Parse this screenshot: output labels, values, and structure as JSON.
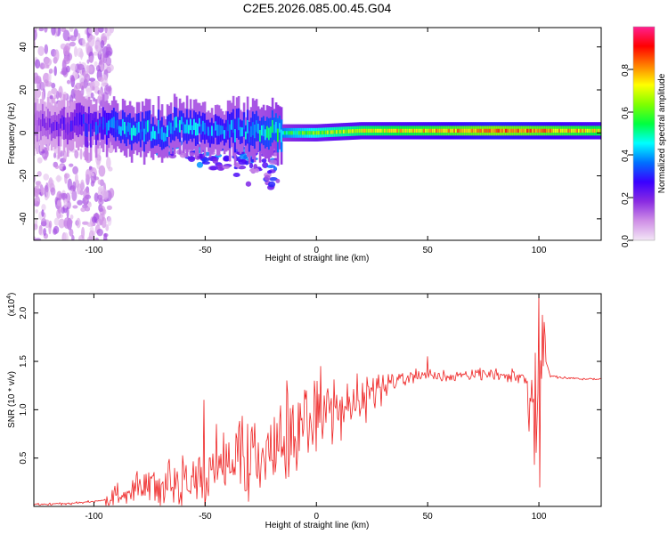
{
  "chart_data": [
    {
      "type": "heatmap",
      "title": "C2E5.2026.085.00.45.G04",
      "xlabel": "Height of straight line (km)",
      "ylabel": "Frequency (Hz)",
      "xlim": [
        -127,
        128
      ],
      "ylim": [
        -50,
        49
      ],
      "xticks": [
        -100,
        -50,
        0,
        50,
        100
      ],
      "yticks": [
        -40,
        -20,
        0,
        20,
        40
      ],
      "colorbar": {
        "label": "Normalized spectral amplitude",
        "range": [
          0,
          1
        ],
        "ticks": [
          "0.0",
          "0.2",
          "0.4",
          "0.6",
          "0.8"
        ],
        "colors": [
          "#f3e6f6",
          "#cf8fe6",
          "#8a2be2",
          "#3a00ff",
          "#0070ff",
          "#00ffff",
          "#00ff40",
          "#80ff00",
          "#ffff00",
          "#ff8000",
          "#ff0000",
          "#ff2090"
        ]
      },
      "ridge": {
        "x": [
          -127,
          -100,
          -90,
          -80,
          -70,
          -60,
          -50,
          -40,
          -30,
          -20,
          -10,
          0,
          20,
          50,
          80,
          100,
          128
        ],
        "freq": [
          4,
          4,
          3,
          2,
          0,
          4,
          2,
          2,
          1,
          0,
          0,
          0,
          1,
          1,
          1,
          1,
          1
        ],
        "amplitude": [
          0.15,
          0.3,
          0.4,
          0.4,
          0.4,
          0.4,
          0.38,
          0.38,
          0.4,
          0.45,
          0.55,
          0.62,
          0.7,
          0.75,
          0.85,
          0.8,
          0.72
        ]
      }
    },
    {
      "type": "line",
      "title": "",
      "xlabel": "Height of straight line (km)",
      "ylabel": "SNR (10 * v/v)",
      "y_multiplier": "(x10^4)",
      "y_multiplier_base": "(x10",
      "y_multiplier_exp": "4",
      "y_multiplier_close": ")",
      "xlim": [
        -127,
        128
      ],
      "ylim": [
        0,
        2.2
      ],
      "xticks": [
        -100,
        -50,
        0,
        50,
        100
      ],
      "yticks": [
        0.5,
        1.0,
        1.5,
        2.0
      ],
      "ytick_labels": [
        "0.5",
        "1.0",
        "1.5",
        "2.0"
      ],
      "color": "#ee2222",
      "series": [
        {
          "name": "SNR",
          "x": [
            -127,
            -110,
            -100,
            -95,
            -90,
            -85,
            -80,
            -75,
            -70,
            -65,
            -60,
            -55,
            -50,
            -45,
            -40,
            -35,
            -30,
            -25,
            -20,
            -15,
            -10,
            -5,
            0,
            5,
            10,
            15,
            20,
            25,
            30,
            35,
            40,
            45,
            50,
            60,
            70,
            80,
            90,
            95,
            98,
            100,
            102,
            105,
            110,
            120,
            128
          ],
          "y": [
            0.02,
            0.03,
            0.05,
            0.07,
            0.1,
            0.15,
            0.2,
            0.22,
            0.2,
            0.25,
            0.25,
            0.28,
            0.35,
            0.4,
            0.45,
            0.5,
            0.55,
            0.6,
            0.6,
            0.6,
            0.75,
            0.85,
            0.95,
            0.98,
            1.0,
            1.02,
            1.05,
            1.15,
            1.25,
            1.3,
            1.35,
            1.36,
            1.35,
            1.33,
            1.35,
            1.36,
            1.35,
            1.3,
            0.9,
            1.0,
            1.6,
            1.35,
            1.33,
            1.32,
            1.32
          ],
          "spikes": [
            {
              "x": -50.5,
              "y": 1.1
            },
            {
              "x": -45,
              "y": 0.85
            },
            {
              "x": -13.5,
              "y": 1.3
            },
            {
              "x": 50,
              "y": 1.55
            },
            {
              "x": 100,
              "y": 2.2
            },
            {
              "x": 100.5,
              "y": 0.2
            }
          ]
        }
      ]
    }
  ]
}
